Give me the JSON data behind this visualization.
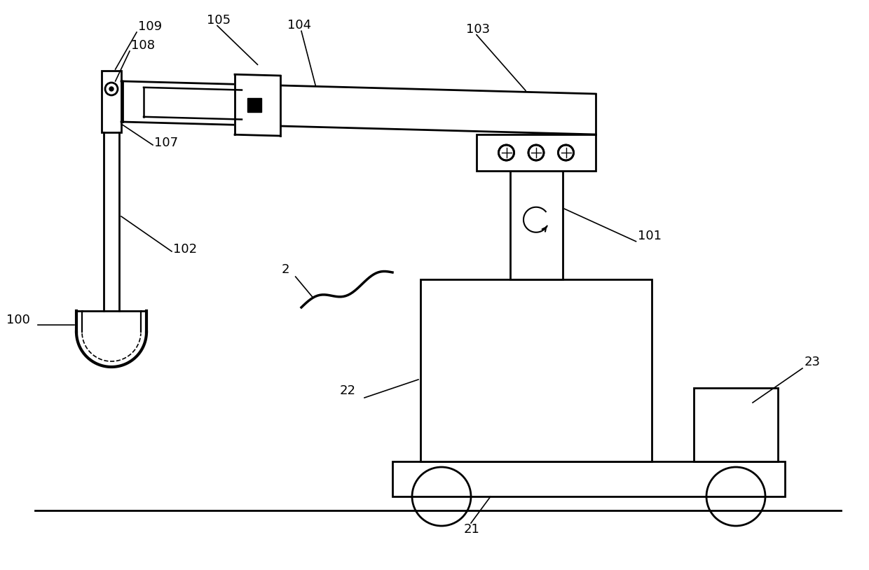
{
  "bg_color": "#ffffff",
  "line_color": "#000000",
  "line_width": 2.0,
  "font_size": 13,
  "fig_w": 12.4,
  "fig_h": 8.14,
  "dpi": 100
}
